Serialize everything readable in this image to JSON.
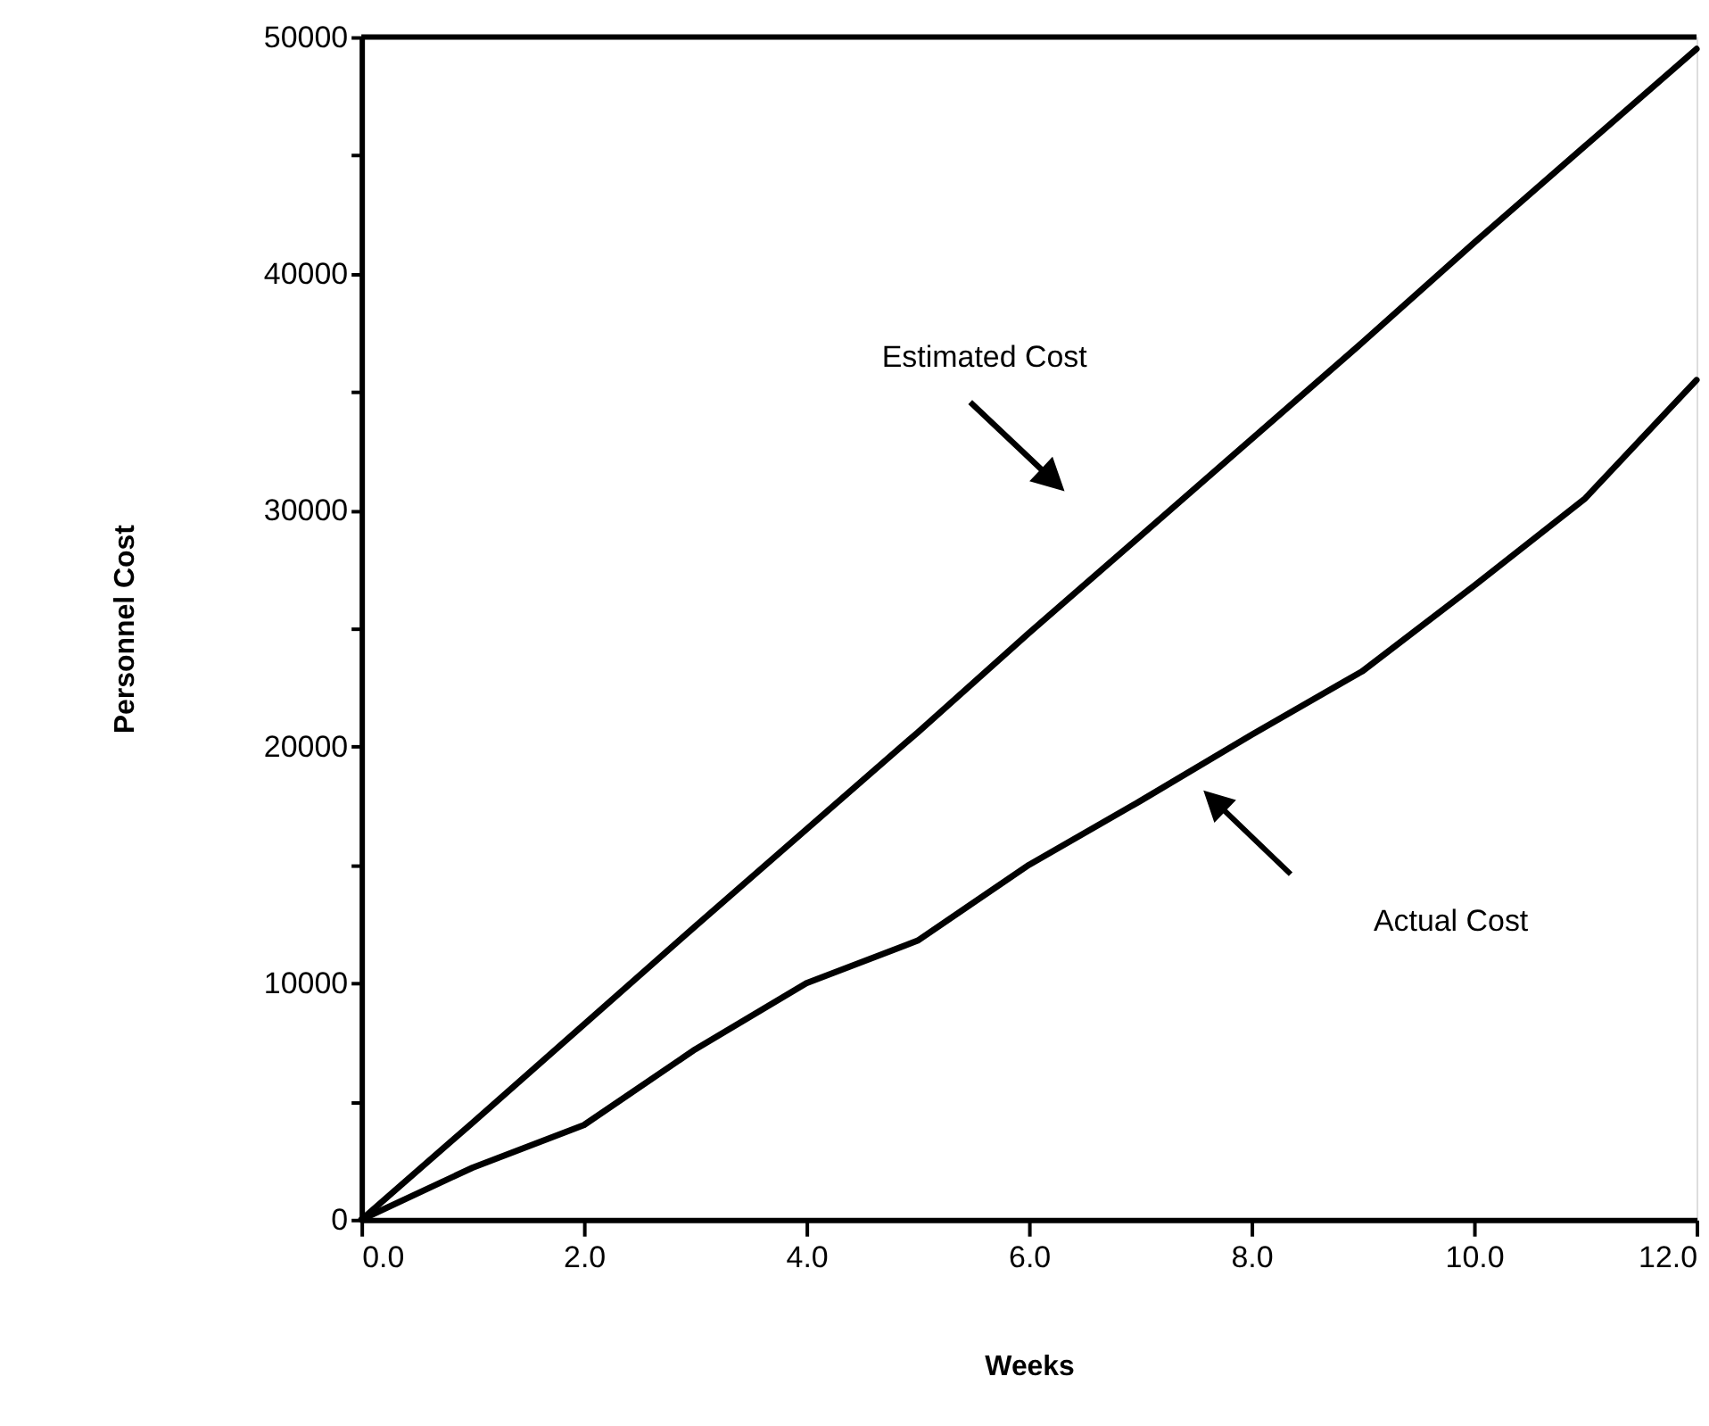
{
  "chart_data": {
    "type": "line",
    "xlabel": "Weeks",
    "ylabel": "Personnel  Cost",
    "xlim": [
      0,
      12
    ],
    "ylim": [
      0,
      50000
    ],
    "xticks": [
      {
        "value": 0,
        "label": "0.0"
      },
      {
        "value": 2,
        "label": "2.0"
      },
      {
        "value": 4,
        "label": "4.0"
      },
      {
        "value": 6,
        "label": "6.0"
      },
      {
        "value": 8,
        "label": "8.0"
      },
      {
        "value": 10,
        "label": "10.0"
      },
      {
        "value": 12,
        "label": "12.0"
      }
    ],
    "yticks": [
      0,
      {
        "value": 5000,
        "label": null
      },
      10000,
      {
        "value": 15000,
        "label": null
      },
      20000,
      {
        "value": 25000,
        "label": null
      },
      30000,
      {
        "value": 35000,
        "label": null
      },
      40000,
      {
        "value": 45000,
        "label": null
      },
      50000
    ],
    "x": [
      0,
      1,
      2,
      3,
      4,
      5,
      6,
      7,
      8,
      9,
      10,
      11,
      12
    ],
    "series": [
      {
        "color": "#000000",
        "values": [
          0,
          4100,
          8250,
          12400,
          16500,
          20600,
          24800,
          28900,
          33000,
          37100,
          41300,
          45400,
          49500
        ]
      },
      {
        "color": "#000000",
        "values": [
          0,
          2200,
          4000,
          7200,
          10000,
          11800,
          15000,
          17700,
          20500,
          23200,
          26800,
          30500,
          35500
        ]
      }
    ],
    "annotations": [
      "Estimated Cost",
      "Actual Cost"
    ],
    "grid": false,
    "legend": false,
    "marker": "none",
    "line_style": "solid"
  }
}
